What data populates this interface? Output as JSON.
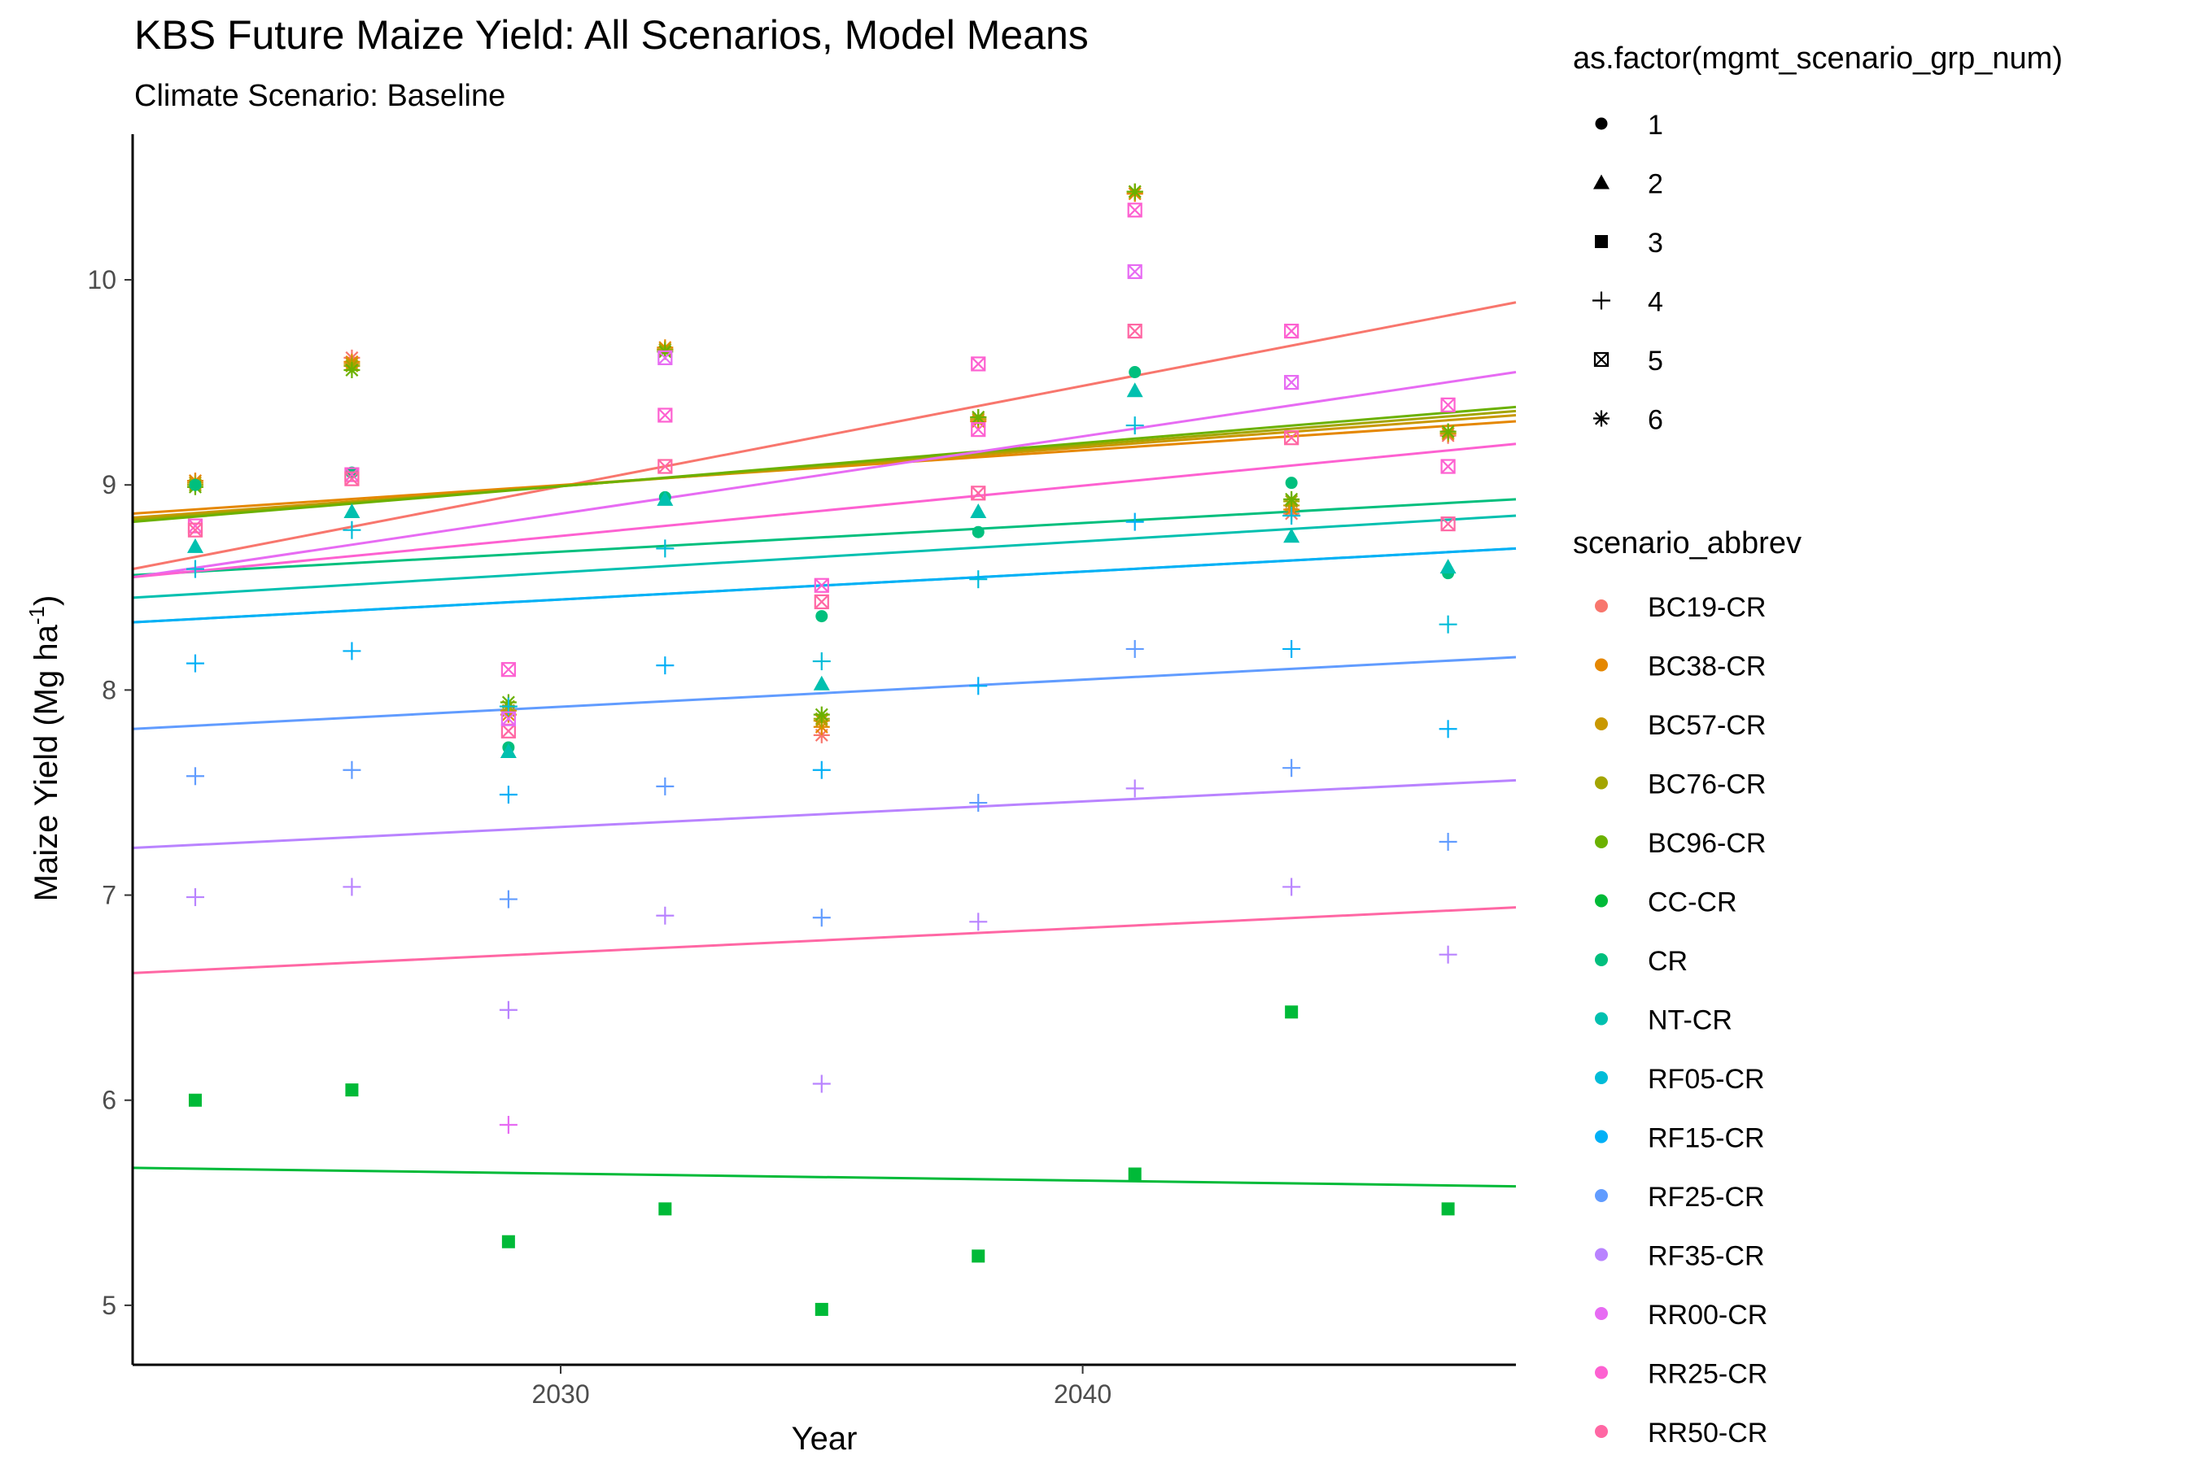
{
  "chart_data": {
    "type": "scatter",
    "title": "KBS  Future Maize Yield: All Scenarios, Model Means",
    "subtitle": "Climate Scenario: Baseline",
    "xlabel": "Year",
    "ylabel_main": "Maize Yield (Mg ha",
    "ylabel_sup": "-1",
    "ylabel_close": ")",
    "xlim": [
      2021.8,
      2048.3
    ],
    "ylim": [
      4.71,
      10.71
    ],
    "xticks": [
      2030,
      2040
    ],
    "yticks": [
      5,
      6,
      7,
      8,
      9,
      10
    ],
    "grid": false,
    "legend_position": "right",
    "shape_legend": {
      "title": "as.factor(mgmt_scenario_grp_num)",
      "entries": [
        {
          "label": "1",
          "shape": "circle"
        },
        {
          "label": "2",
          "shape": "triangle"
        },
        {
          "label": "3",
          "shape": "square"
        },
        {
          "label": "4",
          "shape": "plus"
        },
        {
          "label": "5",
          "shape": "boxx"
        },
        {
          "label": "6",
          "shape": "asterisk"
        }
      ]
    },
    "color_legend": {
      "title": "scenario_abbrev",
      "entries": [
        {
          "label": "BC19-CR",
          "color": "#F8766D"
        },
        {
          "label": "BC38-CR",
          "color": "#E58700"
        },
        {
          "label": "BC57-CR",
          "color": "#C99800"
        },
        {
          "label": "BC76-CR",
          "color": "#A3A500"
        },
        {
          "label": "BC96-CR",
          "color": "#6BB100"
        },
        {
          "label": "CC-CR",
          "color": "#00BA38"
        },
        {
          "label": "CR",
          "color": "#00BF7D"
        },
        {
          "label": "NT-CR",
          "color": "#00C0AF"
        },
        {
          "label": "RF05-CR",
          "color": "#00BCD8"
        },
        {
          "label": "RF15-CR",
          "color": "#00B0F6"
        },
        {
          "label": "RF25-CR",
          "color": "#619CFF"
        },
        {
          "label": "RF35-CR",
          "color": "#B983FF"
        },
        {
          "label": "RR00-CR",
          "color": "#E76BF3"
        },
        {
          "label": "RR25-CR",
          "color": "#FD61D1"
        },
        {
          "label": "RR50-CR",
          "color": "#FF67A4"
        }
      ]
    },
    "x_years": [
      2023,
      2026,
      2029,
      2032,
      2035,
      2038,
      2041,
      2044,
      2047
    ],
    "series": [
      {
        "name": "BC19-CR",
        "color": "#F8766D",
        "shape": "asterisk",
        "values": [
          9.02,
          9.62,
          7.9,
          9.66,
          7.78,
          9.32,
          10.42,
          8.86,
          9.24
        ],
        "trend": [
          8.59,
          9.89
        ]
      },
      {
        "name": "BC38-CR",
        "color": "#E58700",
        "shape": "asterisk",
        "values": [
          9.02,
          9.6,
          7.88,
          9.67,
          7.82,
          9.31,
          10.42,
          8.88,
          9.25
        ],
        "trend": [
          8.86,
          9.31
        ]
      },
      {
        "name": "BC57-CR",
        "color": "#C99800",
        "shape": "asterisk",
        "values": [
          9.01,
          9.59,
          7.9,
          9.66,
          7.85,
          9.32,
          10.43,
          8.9,
          9.25
        ],
        "trend": [
          8.84,
          9.34
        ]
      },
      {
        "name": "BC76-CR",
        "color": "#A3A500",
        "shape": "asterisk",
        "values": [
          9.0,
          9.58,
          7.92,
          9.66,
          7.86,
          9.33,
          10.43,
          8.92,
          9.26
        ],
        "trend": [
          8.83,
          9.36
        ]
      },
      {
        "name": "BC96-CR",
        "color": "#6BB100",
        "shape": "asterisk",
        "values": [
          8.99,
          9.56,
          7.94,
          9.65,
          7.88,
          9.33,
          10.43,
          8.93,
          9.26
        ],
        "trend": [
          8.82,
          9.38
        ]
      },
      {
        "name": "CC-CR",
        "color": "#00BA38",
        "shape": "square",
        "values": [
          6.0,
          6.05,
          5.31,
          5.47,
          4.98,
          5.24,
          5.64,
          6.43,
          5.47
        ],
        "trend": [
          5.67,
          5.58
        ]
      },
      {
        "name": "CR",
        "color": "#00BF7D",
        "shape": "circle",
        "values": [
          9.0,
          9.06,
          7.72,
          8.94,
          8.36,
          8.77,
          9.55,
          9.01,
          8.57
        ],
        "trend": [
          8.56,
          8.93
        ]
      },
      {
        "name": "NT-CR",
        "color": "#00C0AF",
        "shape": "triangle",
        "values": [
          8.7,
          8.87,
          7.7,
          8.93,
          8.03,
          8.87,
          9.46,
          8.75,
          8.6
        ],
        "trend": [
          8.45,
          8.85
        ]
      },
      {
        "name": "RF05-CR",
        "color": "#00BCD8",
        "shape": "plus",
        "values": [
          8.59,
          8.78,
          7.92,
          8.69,
          8.14,
          8.54,
          9.29,
          8.85,
          8.32
        ],
        "trend": [
          8.33,
          8.69
        ]
      },
      {
        "name": "RF15-CR",
        "color": "#00B0F6",
        "shape": "plus",
        "values": [
          8.13,
          8.19,
          7.49,
          8.12,
          7.61,
          8.02,
          8.82,
          8.2,
          7.81
        ],
        "trend": [
          8.33,
          8.69
        ]
      },
      {
        "name": "RF25-CR",
        "color": "#619CFF",
        "shape": "plus",
        "values": [
          7.58,
          7.61,
          6.98,
          7.53,
          6.89,
          7.45,
          8.2,
          7.62,
          7.26
        ],
        "trend": [
          7.81,
          8.16
        ]
      },
      {
        "name": "RF35-CR",
        "color": "#B983FF",
        "shape": "plus",
        "values": [
          6.99,
          7.04,
          6.44,
          6.9,
          6.08,
          6.87,
          7.52,
          7.04,
          6.71
        ],
        "trend": [
          7.23,
          7.56
        ]
      },
      {
        "name": "RR00-CR",
        "color": "#E76BF3",
        "shape": "plus",
        "values": [
          null,
          null,
          5.88,
          null,
          null,
          null,
          null,
          null,
          null
        ],
        "trend": [
          8.55,
          9.55
        ]
      },
      {
        "name": "RR25-CR",
        "color": "#FD61D1",
        "shape": "boxx",
        "values": [
          8.8,
          9.05,
          8.1,
          9.34,
          8.51,
          9.59,
          10.34,
          9.75,
          9.39
        ],
        "trend": [
          8.55,
          9.2
        ]
      },
      {
        "name": "RR50-CR",
        "color": "#FF67A4",
        "shape": "boxx",
        "values": [
          8.78,
          9.03,
          7.8,
          9.09,
          8.43,
          8.96,
          9.75,
          9.23,
          8.81
        ],
        "trend": [
          6.62,
          6.94
        ]
      }
    ],
    "extra_points": [
      {
        "series": "RR00-CR",
        "color": "#E76BF3",
        "shape": "boxx",
        "x": 2032,
        "y": 9.62
      },
      {
        "series": "RR00-CR",
        "color": "#E76BF3",
        "shape": "boxx",
        "x": 2041,
        "y": 10.04
      },
      {
        "series": "RR00-CR",
        "color": "#E76BF3",
        "shape": "boxx",
        "x": 2044,
        "y": 9.5
      },
      {
        "series": "RR00-CR",
        "color": "#E76BF3",
        "shape": "boxx",
        "x": 2029,
        "y": 7.86
      },
      {
        "series": "RR25-CR",
        "color": "#FD61D1",
        "shape": "boxx",
        "x": 2038,
        "y": 9.27
      },
      {
        "series": "RR25-CR",
        "color": "#FD61D1",
        "shape": "boxx",
        "x": 2047,
        "y": 9.09
      }
    ]
  }
}
